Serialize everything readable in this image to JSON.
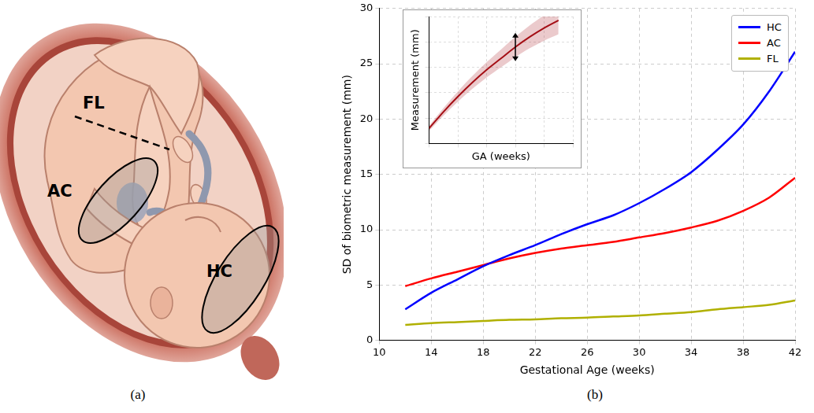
{
  "panel_labels": [
    "(a)",
    "(b)"
  ],
  "illustration": {
    "labels": [
      "FL",
      "AC",
      "HC"
    ]
  },
  "chart_data": [
    {
      "type": "line",
      "xlabel": "Gestational Age (weeks)",
      "ylabel": "SD of biometric measurement (mm)",
      "x": [
        12,
        14,
        16,
        18,
        20,
        22,
        24,
        26,
        28,
        30,
        32,
        34,
        36,
        38,
        40,
        42
      ],
      "series": [
        {
          "name": "HC",
          "color": "#0000ff",
          "values": [
            2.8,
            4.3,
            5.5,
            6.7,
            7.7,
            8.6,
            9.6,
            10.5,
            11.3,
            12.4,
            13.7,
            15.2,
            17.2,
            19.5,
            22.5,
            26.1
          ]
        },
        {
          "name": "AC",
          "color": "#ff0000",
          "values": [
            4.9,
            5.6,
            6.2,
            6.8,
            7.4,
            7.9,
            8.3,
            8.6,
            8.9,
            9.3,
            9.7,
            10.2,
            10.8,
            11.7,
            12.9,
            14.7
          ]
        },
        {
          "name": "FL",
          "color": "#b0b000",
          "values": [
            1.4,
            1.55,
            1.65,
            1.75,
            1.85,
            1.9,
            2.0,
            2.05,
            2.15,
            2.25,
            2.4,
            2.55,
            2.8,
            3.0,
            3.2,
            3.6
          ]
        }
      ],
      "xlim": [
        10,
        42
      ],
      "xticks": [
        10,
        14,
        18,
        22,
        26,
        30,
        34,
        38,
        42
      ],
      "ylim": [
        0,
        30
      ],
      "yticks": [
        0,
        5,
        10,
        15,
        20,
        25,
        30
      ],
      "grid": true,
      "legend": "upper right"
    },
    {
      "type": "line",
      "xlabel": "GA (weeks)",
      "ylabel": "Measurement (mm)",
      "x": [
        0,
        1,
        2,
        3,
        4,
        5,
        6,
        7,
        8,
        9
      ],
      "series": [
        {
          "color": "#a50f15",
          "values": [
            1.2,
            2.5,
            3.7,
            4.8,
            5.8,
            6.7,
            7.6,
            8.4,
            9.1,
            9.7
          ],
          "lower": [
            1.0,
            2.2,
            3.3,
            4.3,
            5.2,
            6.0,
            6.8,
            7.5,
            8.1,
            8.6
          ],
          "upper": [
            1.4,
            2.8,
            4.1,
            5.3,
            6.4,
            7.4,
            8.4,
            9.3,
            10.1,
            10.8
          ]
        }
      ],
      "xlim": [
        0,
        10
      ],
      "xticks": [
        0,
        2,
        4,
        6,
        8,
        10
      ],
      "ylim": [
        0,
        10
      ],
      "yticks": [
        0,
        2,
        4,
        6,
        8,
        10
      ],
      "grid": true,
      "tick_labels": false
    }
  ]
}
